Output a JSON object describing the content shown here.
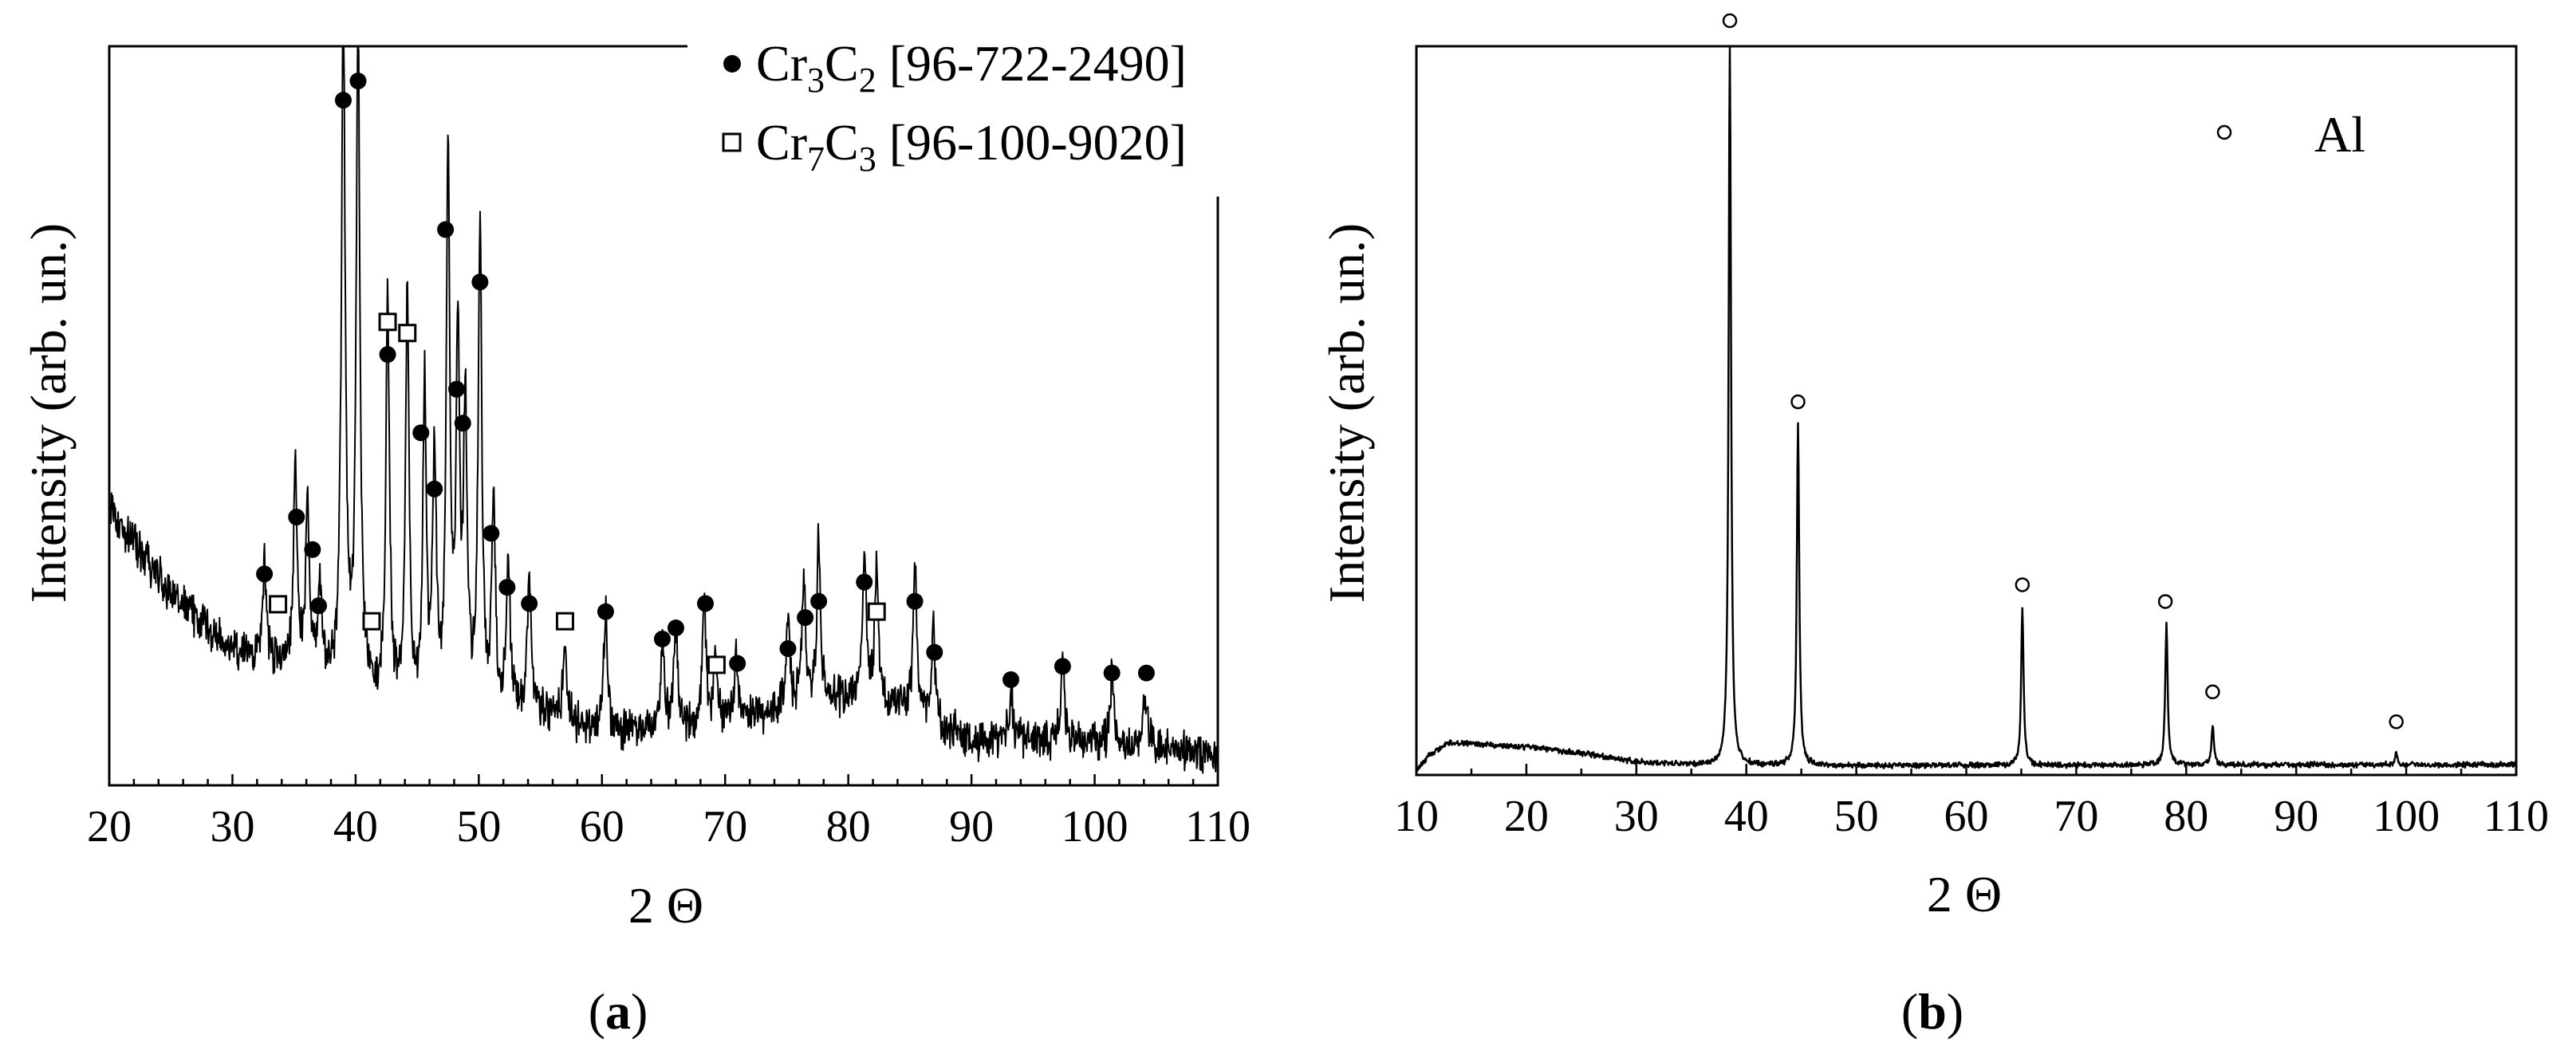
{
  "chart_data": [
    {
      "panel": "a",
      "panel_label": "(a)",
      "panel_letter": "a",
      "type": "line",
      "title": "",
      "xlabel": "2 Θ",
      "ylabel": "Intensity (arb. un.)",
      "xlim": [
        20,
        110
      ],
      "xticks": [
        20,
        30,
        40,
        50,
        60,
        70,
        80,
        90,
        100,
        110
      ],
      "xtick_labels": [
        "20",
        "30",
        "40",
        "50",
        "60",
        "70",
        "80",
        "90",
        "100",
        "110"
      ],
      "y_tick_labels": false,
      "grid": false,
      "color": "#000000",
      "background": {
        "noise_amp": 0.022
      },
      "baseline": [
        [
          20,
          0.37
        ],
        [
          25,
          0.26
        ],
        [
          30,
          0.18
        ],
        [
          35,
          0.16
        ],
        [
          40,
          0.13
        ],
        [
          45,
          0.09
        ],
        [
          50,
          0.1
        ],
        [
          55,
          0.1
        ],
        [
          60,
          0.07
        ],
        [
          70,
          0.08
        ],
        [
          76,
          0.11
        ],
        [
          82,
          0.12
        ],
        [
          90,
          0.06
        ],
        [
          100,
          0.06
        ],
        [
          110,
          0.04
        ]
      ],
      "peaks": [
        {
          "x": 32.6,
          "h": 0.13
        },
        {
          "x": 35.1,
          "h": 0.27
        },
        {
          "x": 36.1,
          "h": 0.23
        },
        {
          "x": 37.1,
          "h": 0.12
        },
        {
          "x": 39.0,
          "h": 0.95
        },
        {
          "x": 40.2,
          "h": 0.93
        },
        {
          "x": 42.6,
          "h": 0.55
        },
        {
          "x": 44.2,
          "h": 0.56
        },
        {
          "x": 45.6,
          "h": 0.44
        },
        {
          "x": 46.4,
          "h": 0.34
        },
        {
          "x": 47.5,
          "h": 0.76
        },
        {
          "x": 48.3,
          "h": 0.5
        },
        {
          "x": 48.9,
          "h": 0.4
        },
        {
          "x": 50.1,
          "h": 0.66
        },
        {
          "x": 51.2,
          "h": 0.28
        },
        {
          "x": 52.4,
          "h": 0.2
        },
        {
          "x": 54.1,
          "h": 0.18
        },
        {
          "x": 57.0,
          "h": 0.1
        },
        {
          "x": 60.3,
          "h": 0.17
        },
        {
          "x": 64.9,
          "h": 0.12
        },
        {
          "x": 66.0,
          "h": 0.14
        },
        {
          "x": 68.3,
          "h": 0.2
        },
        {
          "x": 69.2,
          "h": 0.09
        },
        {
          "x": 70.9,
          "h": 0.1
        },
        {
          "x": 75.1,
          "h": 0.11
        },
        {
          "x": 76.4,
          "h": 0.17
        },
        {
          "x": 77.6,
          "h": 0.22
        },
        {
          "x": 81.3,
          "h": 0.2
        },
        {
          "x": 82.3,
          "h": 0.17
        },
        {
          "x": 85.4,
          "h": 0.21
        },
        {
          "x": 86.9,
          "h": 0.13
        },
        {
          "x": 93.2,
          "h": 0.07
        },
        {
          "x": 97.4,
          "h": 0.11
        },
        {
          "x": 101.4,
          "h": 0.09
        },
        {
          "x": 104.1,
          "h": 0.08
        }
      ],
      "markers": [
        {
          "x": 32.6,
          "y": 0.286,
          "symbol": "filled-circle"
        },
        {
          "x": 35.2,
          "y": 0.363,
          "symbol": "filled-circle"
        },
        {
          "x": 36.5,
          "y": 0.319,
          "symbol": "filled-circle"
        },
        {
          "x": 37.0,
          "y": 0.243,
          "symbol": "filled-circle"
        },
        {
          "x": 39.0,
          "y": 0.927,
          "symbol": "filled-circle"
        },
        {
          "x": 40.2,
          "y": 0.953,
          "symbol": "filled-circle"
        },
        {
          "x": 42.6,
          "y": 0.583,
          "symbol": "filled-circle"
        },
        {
          "x": 45.3,
          "y": 0.477,
          "symbol": "filled-circle"
        },
        {
          "x": 46.4,
          "y": 0.401,
          "symbol": "filled-circle"
        },
        {
          "x": 47.3,
          "y": 0.752,
          "symbol": "filled-circle"
        },
        {
          "x": 48.2,
          "y": 0.536,
          "symbol": "filled-circle"
        },
        {
          "x": 48.7,
          "y": 0.49,
          "symbol": "filled-circle"
        },
        {
          "x": 50.1,
          "y": 0.681,
          "symbol": "filled-circle"
        },
        {
          "x": 51.0,
          "y": 0.341,
          "symbol": "filled-circle"
        },
        {
          "x": 52.3,
          "y": 0.268,
          "symbol": "filled-circle"
        },
        {
          "x": 54.1,
          "y": 0.246,
          "symbol": "filled-circle"
        },
        {
          "x": 60.3,
          "y": 0.235,
          "symbol": "filled-circle"
        },
        {
          "x": 64.9,
          "y": 0.198,
          "symbol": "filled-circle"
        },
        {
          "x": 66.0,
          "y": 0.213,
          "symbol": "filled-circle"
        },
        {
          "x": 68.4,
          "y": 0.246,
          "symbol": "filled-circle"
        },
        {
          "x": 71.0,
          "y": 0.165,
          "symbol": "filled-circle"
        },
        {
          "x": 75.1,
          "y": 0.185,
          "symbol": "filled-circle"
        },
        {
          "x": 76.5,
          "y": 0.227,
          "symbol": "filled-circle"
        },
        {
          "x": 77.6,
          "y": 0.249,
          "symbol": "filled-circle"
        },
        {
          "x": 81.3,
          "y": 0.275,
          "symbol": "filled-circle"
        },
        {
          "x": 85.4,
          "y": 0.249,
          "symbol": "filled-circle"
        },
        {
          "x": 87.0,
          "y": 0.18,
          "symbol": "filled-circle"
        },
        {
          "x": 93.2,
          "y": 0.143,
          "symbol": "filled-circle"
        },
        {
          "x": 97.4,
          "y": 0.161,
          "symbol": "filled-circle"
        },
        {
          "x": 101.4,
          "y": 0.152,
          "symbol": "filled-circle"
        },
        {
          "x": 104.2,
          "y": 0.152,
          "symbol": "filled-circle"
        },
        {
          "x": 33.7,
          "y": 0.245,
          "symbol": "open-square"
        },
        {
          "x": 41.3,
          "y": 0.222,
          "symbol": "open-square"
        },
        {
          "x": 42.6,
          "y": 0.627,
          "symbol": "open-square"
        },
        {
          "x": 44.2,
          "y": 0.612,
          "symbol": "open-square"
        },
        {
          "x": 57.0,
          "y": 0.222,
          "symbol": "open-square"
        },
        {
          "x": 69.3,
          "y": 0.163,
          "symbol": "open-square"
        },
        {
          "x": 82.3,
          "y": 0.235,
          "symbol": "open-square"
        }
      ],
      "legend": {
        "placement": "top-right",
        "entries": [
          {
            "symbol": "filled-circle",
            "phase": "Cr3C2",
            "sub_a": "3",
            "sub_b": "2",
            "ref": "[96-722-2490]"
          },
          {
            "symbol": "open-square",
            "phase": "Cr7C3",
            "sub_a": "7",
            "sub_b": "3",
            "ref": "[96-100-9020]"
          }
        ]
      }
    },
    {
      "panel": "b",
      "panel_label": "(b)",
      "panel_letter": "b",
      "type": "line",
      "title": "",
      "xlabel": "2 Θ",
      "ylabel": "Intensity (arb. un.)",
      "xlim": [
        10,
        110
      ],
      "xticks": [
        10,
        20,
        30,
        40,
        50,
        60,
        70,
        80,
        90,
        100,
        110
      ],
      "xtick_labels": [
        "10",
        "20",
        "30",
        "40",
        "50",
        "60",
        "70",
        "80",
        "90",
        "100",
        "110"
      ],
      "y_tick_labels": false,
      "grid": false,
      "color": "#000000",
      "background": {
        "noise_amp": 0.003
      },
      "baseline": [
        [
          10,
          0.005
        ],
        [
          11,
          0.025
        ],
        [
          13,
          0.045
        ],
        [
          16,
          0.042
        ],
        [
          20,
          0.038
        ],
        [
          25,
          0.03
        ],
        [
          30,
          0.018
        ],
        [
          35,
          0.014
        ],
        [
          40,
          0.013
        ],
        [
          60,
          0.013
        ],
        [
          80,
          0.014
        ],
        [
          110,
          0.014
        ]
      ],
      "peaks": [
        {
          "x": 38.5,
          "h": 0.99
        },
        {
          "x": 44.7,
          "h": 0.47
        },
        {
          "x": 65.1,
          "h": 0.215
        },
        {
          "x": 78.2,
          "h": 0.195
        },
        {
          "x": 82.4,
          "h": 0.055
        },
        {
          "x": 99.1,
          "h": 0.018
        }
      ],
      "markers": [
        {
          "x": 38.5,
          "y": 1.035,
          "symbol": "open-circle"
        },
        {
          "x": 44.7,
          "y": 0.512,
          "symbol": "open-circle"
        },
        {
          "x": 65.1,
          "y": 0.261,
          "symbol": "open-circle"
        },
        {
          "x": 78.1,
          "y": 0.238,
          "symbol": "open-circle"
        },
        {
          "x": 82.4,
          "y": 0.114,
          "symbol": "open-circle"
        },
        {
          "x": 99.1,
          "y": 0.073,
          "symbol": "open-circle"
        }
      ],
      "legend": {
        "placement": "top-right",
        "entries": [
          {
            "symbol": "open-circle",
            "phase": "Al"
          }
        ]
      }
    }
  ]
}
